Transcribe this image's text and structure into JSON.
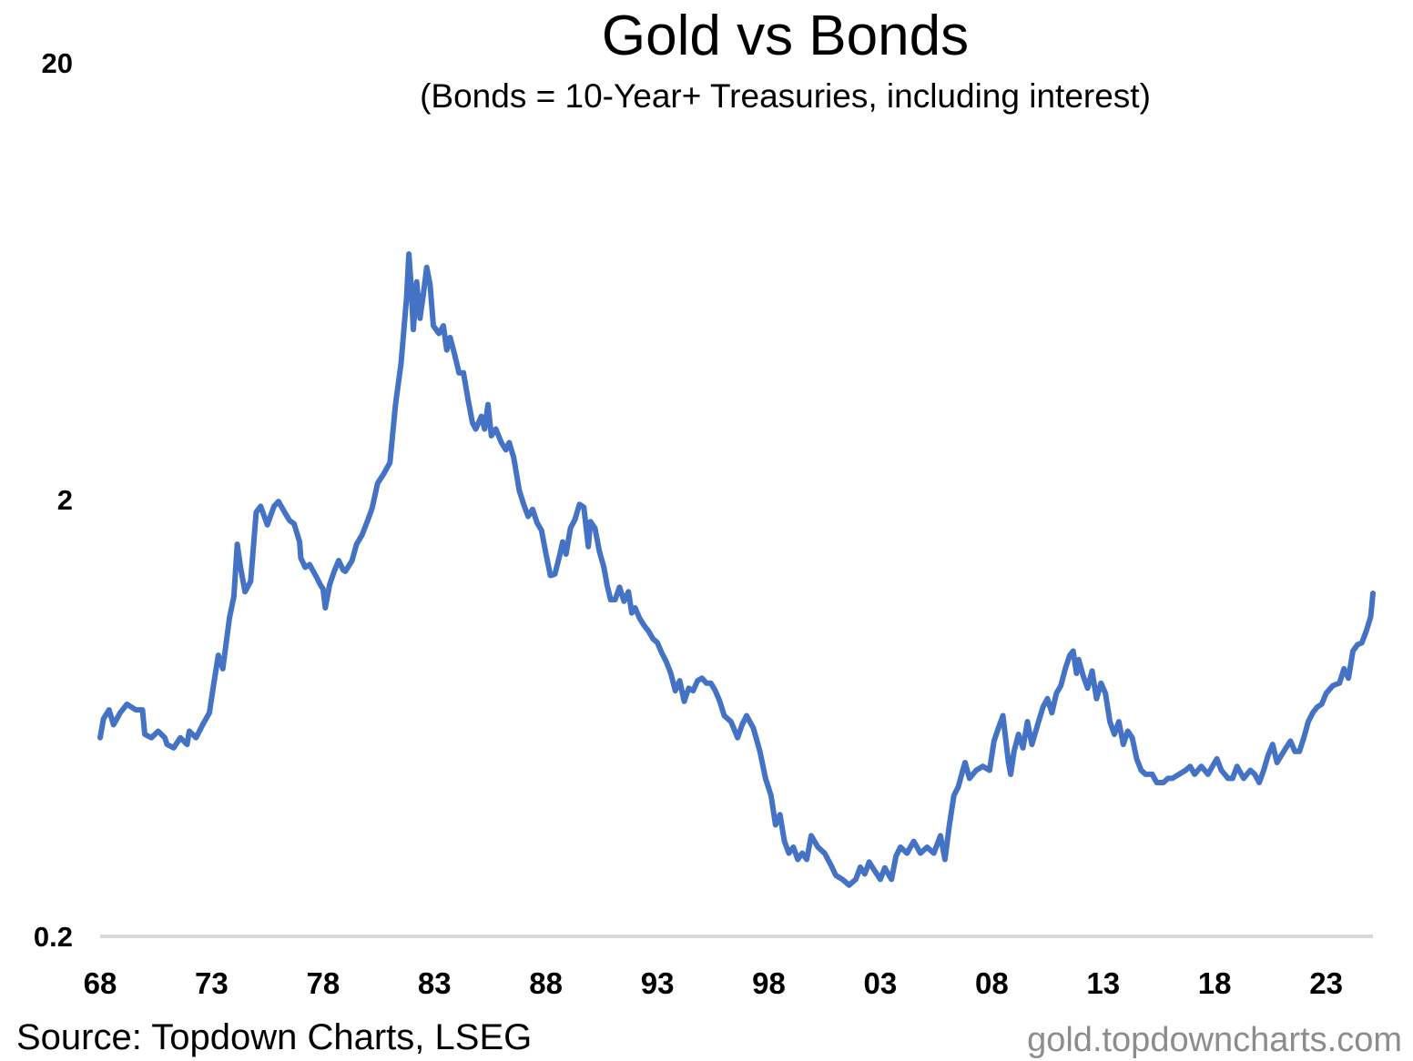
{
  "chart_data": {
    "type": "line",
    "title": "Gold vs Bonds",
    "subtitle": "(Bonds = 10-Year+ Treasuries, including interest)",
    "xlabel": "",
    "ylabel": "",
    "y_scale": "log",
    "ylim": [
      0.2,
      20
    ],
    "xlim": [
      1968,
      2025.1
    ],
    "y_ticks": [
      {
        "value": 20,
        "label": "20"
      },
      {
        "value": 2,
        "label": "2"
      },
      {
        "value": 0.2,
        "label": "0.2"
      }
    ],
    "x_ticks": [
      {
        "value": 1968,
        "label": "68"
      },
      {
        "value": 1973,
        "label": "73"
      },
      {
        "value": 1978,
        "label": "78"
      },
      {
        "value": 1983,
        "label": "83"
      },
      {
        "value": 1988,
        "label": "88"
      },
      {
        "value": 1993,
        "label": "93"
      },
      {
        "value": 1998,
        "label": "98"
      },
      {
        "value": 2003,
        "label": "03"
      },
      {
        "value": 2008,
        "label": "08"
      },
      {
        "value": 2013,
        "label": "13"
      },
      {
        "value": 2018,
        "label": "18"
      },
      {
        "value": 2023,
        "label": "23"
      }
    ],
    "series": [
      {
        "name": "Gold vs Bonds",
        "color": "#4472C4",
        "points": [
          [
            1968.0,
            0.57
          ],
          [
            1968.15,
            0.63
          ],
          [
            1968.4,
            0.66
          ],
          [
            1968.6,
            0.61
          ],
          [
            1968.9,
            0.65
          ],
          [
            1969.2,
            0.68
          ],
          [
            1969.6,
            0.66
          ],
          [
            1969.9,
            0.66
          ],
          [
            1970.0,
            0.58
          ],
          [
            1970.3,
            0.57
          ],
          [
            1970.6,
            0.59
          ],
          [
            1970.9,
            0.57
          ],
          [
            1971.0,
            0.55
          ],
          [
            1971.3,
            0.54
          ],
          [
            1971.6,
            0.57
          ],
          [
            1971.9,
            0.55
          ],
          [
            1972.0,
            0.59
          ],
          [
            1972.3,
            0.57
          ],
          [
            1972.6,
            0.61
          ],
          [
            1972.9,
            0.65
          ],
          [
            1973.1,
            0.76
          ],
          [
            1973.3,
            0.88
          ],
          [
            1973.5,
            0.82
          ],
          [
            1973.8,
            1.07
          ],
          [
            1974.0,
            1.2
          ],
          [
            1974.15,
            1.58
          ],
          [
            1974.3,
            1.4
          ],
          [
            1974.5,
            1.23
          ],
          [
            1974.75,
            1.3
          ],
          [
            1975.0,
            1.87
          ],
          [
            1975.2,
            1.93
          ],
          [
            1975.5,
            1.75
          ],
          [
            1975.8,
            1.93
          ],
          [
            1976.0,
            1.98
          ],
          [
            1976.25,
            1.88
          ],
          [
            1976.5,
            1.79
          ],
          [
            1976.7,
            1.76
          ],
          [
            1976.95,
            1.6
          ],
          [
            1977.0,
            1.47
          ],
          [
            1977.2,
            1.4
          ],
          [
            1977.4,
            1.42
          ],
          [
            1977.7,
            1.33
          ],
          [
            1977.9,
            1.27
          ],
          [
            1978.0,
            1.25
          ],
          [
            1978.1,
            1.13
          ],
          [
            1978.3,
            1.28
          ],
          [
            1978.5,
            1.37
          ],
          [
            1978.7,
            1.45
          ],
          [
            1978.9,
            1.38
          ],
          [
            1979.0,
            1.37
          ],
          [
            1979.3,
            1.45
          ],
          [
            1979.5,
            1.58
          ],
          [
            1979.75,
            1.66
          ],
          [
            1980.0,
            1.79
          ],
          [
            1980.2,
            1.91
          ],
          [
            1980.45,
            2.18
          ],
          [
            1980.7,
            2.28
          ],
          [
            1981.0,
            2.43
          ],
          [
            1981.25,
            3.3
          ],
          [
            1981.5,
            4.1
          ],
          [
            1981.75,
            5.8
          ],
          [
            1981.85,
            7.3
          ],
          [
            1981.95,
            6.2
          ],
          [
            1982.05,
            4.9
          ],
          [
            1982.2,
            6.3
          ],
          [
            1982.35,
            5.2
          ],
          [
            1982.5,
            5.9
          ],
          [
            1982.65,
            6.8
          ],
          [
            1982.8,
            6.2
          ],
          [
            1982.95,
            5.0
          ],
          [
            1983.2,
            4.8
          ],
          [
            1983.4,
            5.0
          ],
          [
            1983.55,
            4.4
          ],
          [
            1983.7,
            4.7
          ],
          [
            1983.9,
            4.3
          ],
          [
            1984.1,
            3.9
          ],
          [
            1984.3,
            3.9
          ],
          [
            1984.5,
            3.4
          ],
          [
            1984.7,
            3.0
          ],
          [
            1984.85,
            2.9
          ],
          [
            1985.1,
            3.1
          ],
          [
            1985.25,
            2.9
          ],
          [
            1985.4,
            3.3
          ],
          [
            1985.55,
            2.8
          ],
          [
            1985.75,
            2.9
          ],
          [
            1986.0,
            2.7
          ],
          [
            1986.2,
            2.6
          ],
          [
            1986.35,
            2.7
          ],
          [
            1986.55,
            2.5
          ],
          [
            1986.8,
            2.1
          ],
          [
            1987.0,
            1.95
          ],
          [
            1987.2,
            1.83
          ],
          [
            1987.4,
            1.9
          ],
          [
            1987.6,
            1.77
          ],
          [
            1987.8,
            1.7
          ],
          [
            1988.0,
            1.5
          ],
          [
            1988.2,
            1.34
          ],
          [
            1988.4,
            1.35
          ],
          [
            1988.6,
            1.48
          ],
          [
            1988.75,
            1.6
          ],
          [
            1988.9,
            1.5
          ],
          [
            1989.1,
            1.72
          ],
          [
            1989.3,
            1.8
          ],
          [
            1989.5,
            1.95
          ],
          [
            1989.7,
            1.92
          ],
          [
            1989.9,
            1.56
          ],
          [
            1990.0,
            1.78
          ],
          [
            1990.2,
            1.72
          ],
          [
            1990.4,
            1.52
          ],
          [
            1990.6,
            1.4
          ],
          [
            1990.75,
            1.27
          ],
          [
            1990.9,
            1.18
          ],
          [
            1991.1,
            1.18
          ],
          [
            1991.3,
            1.26
          ],
          [
            1991.5,
            1.17
          ],
          [
            1991.7,
            1.23
          ],
          [
            1991.85,
            1.1
          ],
          [
            1992.0,
            1.13
          ],
          [
            1992.2,
            1.07
          ],
          [
            1992.4,
            1.03
          ],
          [
            1992.6,
            1.0
          ],
          [
            1992.8,
            0.96
          ],
          [
            1993.0,
            0.94
          ],
          [
            1993.2,
            0.89
          ],
          [
            1993.4,
            0.85
          ],
          [
            1993.6,
            0.8
          ],
          [
            1993.8,
            0.73
          ],
          [
            1994.0,
            0.77
          ],
          [
            1994.2,
            0.69
          ],
          [
            1994.4,
            0.74
          ],
          [
            1994.6,
            0.73
          ],
          [
            1994.8,
            0.77
          ],
          [
            1995.0,
            0.78
          ],
          [
            1995.2,
            0.76
          ],
          [
            1995.4,
            0.76
          ],
          [
            1995.6,
            0.73
          ],
          [
            1995.8,
            0.69
          ],
          [
            1996.0,
            0.64
          ],
          [
            1996.3,
            0.62
          ],
          [
            1996.6,
            0.57
          ],
          [
            1996.8,
            0.61
          ],
          [
            1997.0,
            0.64
          ],
          [
            1997.3,
            0.6
          ],
          [
            1997.6,
            0.53
          ],
          [
            1997.85,
            0.46
          ],
          [
            1998.1,
            0.42
          ],
          [
            1998.3,
            0.36
          ],
          [
            1998.5,
            0.38
          ],
          [
            1998.7,
            0.33
          ],
          [
            1998.9,
            0.31
          ],
          [
            1999.1,
            0.32
          ],
          [
            1999.3,
            0.3
          ],
          [
            1999.5,
            0.31
          ],
          [
            1999.7,
            0.3
          ],
          [
            1999.9,
            0.34
          ],
          [
            2000.2,
            0.32
          ],
          [
            2000.5,
            0.31
          ],
          [
            2000.8,
            0.29
          ],
          [
            2001.0,
            0.276
          ],
          [
            2001.3,
            0.27
          ],
          [
            2001.6,
            0.262
          ],
          [
            2001.9,
            0.27
          ],
          [
            2002.1,
            0.288
          ],
          [
            2002.3,
            0.278
          ],
          [
            2002.5,
            0.296
          ],
          [
            2002.7,
            0.285
          ],
          [
            2003.0,
            0.27
          ],
          [
            2003.2,
            0.287
          ],
          [
            2003.5,
            0.27
          ],
          [
            2003.7,
            0.305
          ],
          [
            2003.9,
            0.32
          ],
          [
            2004.2,
            0.31
          ],
          [
            2004.5,
            0.33
          ],
          [
            2004.8,
            0.31
          ],
          [
            2005.1,
            0.32
          ],
          [
            2005.4,
            0.31
          ],
          [
            2005.7,
            0.34
          ],
          [
            2005.9,
            0.3
          ],
          [
            2006.1,
            0.36
          ],
          [
            2006.3,
            0.42
          ],
          [
            2006.5,
            0.44
          ],
          [
            2006.7,
            0.48
          ],
          [
            2006.8,
            0.5
          ],
          [
            2007.0,
            0.46
          ],
          [
            2007.3,
            0.48
          ],
          [
            2007.6,
            0.49
          ],
          [
            2007.9,
            0.48
          ],
          [
            2008.1,
            0.56
          ],
          [
            2008.3,
            0.6
          ],
          [
            2008.5,
            0.64
          ],
          [
            2008.75,
            0.5
          ],
          [
            2008.85,
            0.47
          ],
          [
            2009.0,
            0.53
          ],
          [
            2009.2,
            0.58
          ],
          [
            2009.4,
            0.54
          ],
          [
            2009.6,
            0.62
          ],
          [
            2009.8,
            0.55
          ],
          [
            2010.1,
            0.62
          ],
          [
            2010.3,
            0.67
          ],
          [
            2010.5,
            0.7
          ],
          [
            2010.7,
            0.65
          ],
          [
            2010.9,
            0.72
          ],
          [
            2011.1,
            0.75
          ],
          [
            2011.3,
            0.82
          ],
          [
            2011.5,
            0.88
          ],
          [
            2011.65,
            0.9
          ],
          [
            2011.8,
            0.8
          ],
          [
            2011.9,
            0.86
          ],
          [
            2012.1,
            0.79
          ],
          [
            2012.3,
            0.74
          ],
          [
            2012.5,
            0.81
          ],
          [
            2012.7,
            0.7
          ],
          [
            2012.9,
            0.76
          ],
          [
            2013.1,
            0.72
          ],
          [
            2013.3,
            0.62
          ],
          [
            2013.5,
            0.58
          ],
          [
            2013.7,
            0.62
          ],
          [
            2013.9,
            0.55
          ],
          [
            2014.1,
            0.59
          ],
          [
            2014.3,
            0.57
          ],
          [
            2014.5,
            0.51
          ],
          [
            2014.7,
            0.48
          ],
          [
            2014.9,
            0.47
          ],
          [
            2015.2,
            0.47
          ],
          [
            2015.4,
            0.45
          ],
          [
            2015.7,
            0.45
          ],
          [
            2015.9,
            0.46
          ],
          [
            2016.1,
            0.46
          ],
          [
            2016.4,
            0.47
          ],
          [
            2016.7,
            0.48
          ],
          [
            2016.9,
            0.49
          ],
          [
            2017.1,
            0.47
          ],
          [
            2017.4,
            0.49
          ],
          [
            2017.7,
            0.47
          ],
          [
            2017.9,
            0.49
          ],
          [
            2018.1,
            0.51
          ],
          [
            2018.3,
            0.48
          ],
          [
            2018.6,
            0.46
          ],
          [
            2018.8,
            0.46
          ],
          [
            2019.0,
            0.49
          ],
          [
            2019.3,
            0.46
          ],
          [
            2019.6,
            0.48
          ],
          [
            2019.8,
            0.47
          ],
          [
            2020.0,
            0.45
          ],
          [
            2020.2,
            0.48
          ],
          [
            2020.4,
            0.52
          ],
          [
            2020.6,
            0.55
          ],
          [
            2020.8,
            0.5
          ],
          [
            2021.0,
            0.52
          ],
          [
            2021.2,
            0.54
          ],
          [
            2021.4,
            0.56
          ],
          [
            2021.6,
            0.53
          ],
          [
            2021.8,
            0.53
          ],
          [
            2022.0,
            0.57
          ],
          [
            2022.2,
            0.62
          ],
          [
            2022.4,
            0.65
          ],
          [
            2022.6,
            0.67
          ],
          [
            2022.8,
            0.68
          ],
          [
            2023.0,
            0.72
          ],
          [
            2023.3,
            0.75
          ],
          [
            2023.6,
            0.76
          ],
          [
            2023.8,
            0.82
          ],
          [
            2024.0,
            0.78
          ],
          [
            2024.2,
            0.9
          ],
          [
            2024.4,
            0.93
          ],
          [
            2024.6,
            0.94
          ],
          [
            2024.8,
            1.0
          ],
          [
            2025.0,
            1.08
          ],
          [
            2025.1,
            1.22
          ]
        ]
      }
    ]
  },
  "source": "Source: Topdown Charts, LSEG",
  "watermark": "gold.topdowncharts.com"
}
